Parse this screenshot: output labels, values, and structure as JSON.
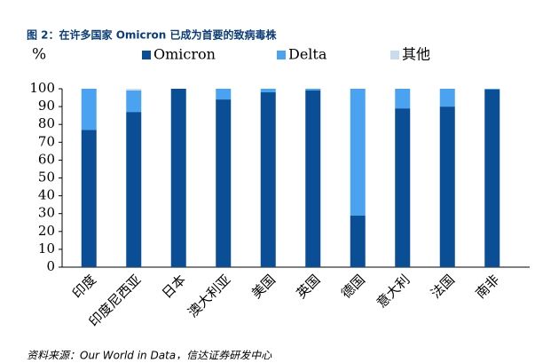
{
  "chart_data": {
    "type": "stacked_bar",
    "title": "图 2：在许多国家 Omicron 已成为首要的致病毒株",
    "y_label": "%",
    "source": "资料来源：Our World in Data，信达证券研发中心",
    "categories": [
      "印度",
      "印度尼西亚",
      "日本",
      "澳大利亚",
      "美国",
      "英国",
      "德国",
      "意大利",
      "法国",
      "南非"
    ],
    "series": [
      {
        "name": "Omicron",
        "color": "#0a4f96",
        "values": [
          77,
          87,
          100,
          94,
          98,
          99,
          29,
          89,
          90,
          99.5
        ]
      },
      {
        "name": "Delta",
        "color": "#4aa3f0",
        "values": [
          23,
          12,
          0,
          6,
          2,
          1,
          71,
          11,
          10,
          0.5
        ]
      },
      {
        "name": "其他",
        "color": "#c9dcee",
        "values": [
          0,
          1,
          0,
          0,
          0,
          0,
          0,
          0,
          0,
          0
        ]
      }
    ],
    "ylim": [
      0,
      100
    ],
    "yticks": [
      0,
      10,
      20,
      30,
      40,
      50,
      60,
      70,
      80,
      90,
      100
    ],
    "grid": false
  }
}
